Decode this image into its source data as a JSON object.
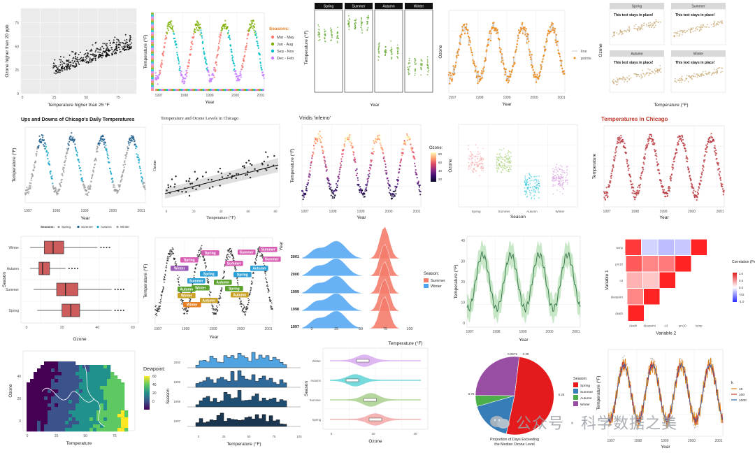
{
  "watermark": {
    "text": "公众号 · 科学数据之美"
  },
  "chart_data": [
    {
      "id": "p1",
      "type": "scatter",
      "xlabel": "Temperature higher than 25 °F",
      "ylabel": "Ozone higher than 20 ppb",
      "xticks": [
        "0",
        "25",
        "50",
        "75"
      ],
      "yticks": [
        "0",
        "25",
        "50",
        "75"
      ],
      "background": "#ebebeb",
      "point_color": "#000000"
    },
    {
      "id": "p2",
      "type": "scatter",
      "xlabel": "Year",
      "ylabel": "Temperature (°F)",
      "xticks": [
        "1997",
        "1998",
        "1999",
        "2000",
        "2001"
      ],
      "legend_title": "Seasons:",
      "legend": [
        "Mar - May",
        "Jun - Aug",
        "Sep - Nov",
        "Dec - Feb"
      ],
      "colors": [
        "#f8766d",
        "#7cae00",
        "#00bfc4",
        "#c77cff"
      ]
    },
    {
      "id": "p3",
      "type": "scatter",
      "xlabel": "Year",
      "ylabel": "Temperature (°F)",
      "facets": [
        "Spring",
        "Summer",
        "Autumn",
        "Winter"
      ],
      "point_color": "#6aaa3a"
    },
    {
      "id": "p4",
      "type": "line",
      "xlabel": "Year",
      "ylabel": "Ozone",
      "xticks": [
        "1997",
        "1998",
        "1999",
        "2000",
        "2001"
      ],
      "legend": [
        "line",
        "points"
      ],
      "color": "#ee8a1a"
    },
    {
      "id": "p5",
      "type": "scatter",
      "xlabel": "Temperature (°F)",
      "ylabel": "Ozone",
      "facets": [
        "Spring",
        "Summer",
        "Autumn",
        "Winter"
      ],
      "annotation": "This text stays in place!",
      "point_color": "#c9ad7a"
    },
    {
      "id": "p6",
      "type": "scatter",
      "title": "Ups and Downs of Chicago's Daily Temperatures",
      "xlabel": "Year",
      "ylabel": "Temperature (°F)",
      "xticks": [
        "1997",
        "1998",
        "1999",
        "2000",
        "2001"
      ],
      "legend_title": "Seasons:",
      "legend": [
        "Spring",
        "Summer",
        "Autumn",
        "Winter"
      ],
      "colors": [
        "#9e9e9e",
        "#1b5c8a",
        "#1fa8c9",
        "#9e9e9e"
      ]
    },
    {
      "id": "p7",
      "type": "scatter",
      "title": "Temperature and Ozone Levels in Chicago",
      "xlabel": "Temperature (°F)",
      "ylabel": "Ozone",
      "xticks": [
        "0",
        "20",
        "40",
        "60",
        "80"
      ]
    },
    {
      "id": "p8",
      "type": "scatter",
      "title": "Viridis 'inferno'",
      "xlabel": "Year",
      "ylabel": "Temperature (°F)",
      "xticks": [
        "1997",
        "1998",
        "1999",
        "2000",
        "2001"
      ],
      "legend_title": "Ozone:",
      "colorbar_ticks": [
        "80",
        "60",
        "40",
        "20"
      ]
    },
    {
      "id": "p9",
      "type": "scatter",
      "xlabel": "Season",
      "ylabel": "Ozone",
      "categories": [
        "Spring",
        "Summer",
        "Autumn",
        "Winter"
      ],
      "colors": [
        "#f4a6a6",
        "#9ccc65",
        "#26c6da",
        "#ce93d8"
      ]
    },
    {
      "id": "p10",
      "type": "scatter",
      "title": "Temperatures in Chicago",
      "xlabel": "Year",
      "ylabel": "Temperature",
      "xticks": [
        "1997",
        "1998",
        "1999",
        "2000",
        "2001"
      ],
      "point_color": "#b5333a"
    },
    {
      "id": "p11",
      "type": "box",
      "xlabel": "Ozone",
      "ylabel": "Season",
      "categories": [
        "Winter",
        "Autumn",
        "Summer",
        "Spring"
      ],
      "xticks": [
        "0",
        "20",
        "40",
        "60"
      ],
      "boxes": [
        {
          "name": "Winter",
          "min": 2,
          "q1": 10,
          "median": 15,
          "q3": 21,
          "max": 40
        },
        {
          "name": "Autumn",
          "min": 2,
          "q1": 7,
          "median": 9,
          "q3": 13,
          "max": 22
        },
        {
          "name": "Summer",
          "min": 4,
          "q1": 17,
          "median": 22,
          "q3": 29,
          "max": 48
        },
        {
          "name": "Spring",
          "min": 6,
          "q1": 20,
          "median": 25,
          "q3": 30,
          "max": 48
        }
      ],
      "fill": "#cd5c5c"
    },
    {
      "id": "p12",
      "type": "scatter",
      "xlabel": "Year",
      "ylabel": "Temperature (°F)",
      "xticks": [
        "1997",
        "1998",
        "1999",
        "2000",
        "2001"
      ],
      "labels": [
        {
          "text": "Spring",
          "color": "#d65db1"
        },
        {
          "text": "Summer",
          "color": "#d65db1"
        },
        {
          "text": "Summer",
          "color": "#d65db1"
        },
        {
          "text": "Summer",
          "color": "#d65db1"
        },
        {
          "text": "Summer",
          "color": "#d65db1"
        },
        {
          "text": "Spring",
          "color": "#d65db1"
        },
        {
          "text": "Winter",
          "color": "#9b59b6"
        },
        {
          "text": "Autumn",
          "color": "#2e9fd6"
        },
        {
          "text": "Spring",
          "color": "#2e9fd6"
        },
        {
          "text": "Spring",
          "color": "#2e9fd6"
        },
        {
          "text": "Summer",
          "color": "#2e9fd6"
        },
        {
          "text": "Autumn",
          "color": "#5aa02c"
        },
        {
          "text": "Spring",
          "color": "#5aa02c"
        },
        {
          "text": "Winter",
          "color": "#5aa02c"
        },
        {
          "text": "Autumn",
          "color": "#5aa02c"
        },
        {
          "text": "Autumn",
          "color": "#c9a227"
        },
        {
          "text": "Winter",
          "color": "#c9a227"
        },
        {
          "text": "Autumn",
          "color": "#c9a227"
        },
        {
          "text": "Winter",
          "color": "#e67e22"
        }
      ]
    },
    {
      "id": "p13",
      "type": "area",
      "xlabel": "Temperature (°F)",
      "ylabel": "Year",
      "yticks": [
        "2001",
        "2000",
        "1999",
        "1998",
        "1997"
      ],
      "xticks": [
        "0",
        "25",
        "50",
        "75",
        "100"
      ],
      "legend_title": "Season:",
      "legend": [
        "Summer",
        "Winter"
      ],
      "colors": [
        "#f47c6b",
        "#4ea3f2"
      ]
    },
    {
      "id": "p14",
      "type": "line",
      "xlabel": "Year",
      "ylabel": "Temperature (°F)",
      "xticks": [
        "1997",
        "1998",
        "1999",
        "2000",
        "2001"
      ],
      "yticks": [
        "40",
        "30",
        "20",
        "10",
        "0"
      ],
      "color": "#3d7a4f"
    },
    {
      "id": "p15",
      "type": "heatmap",
      "xlabel": "Variable 2",
      "ylabel": "Variable 1",
      "xticks": [
        "death",
        "dewpoint",
        "o3",
        "pm10",
        "temp"
      ],
      "yticks": [
        "temp",
        "pm10",
        "o3",
        "dewpoint",
        "death"
      ],
      "legend_title": "Correlation (Pearson)",
      "colorbar_ticks": [
        "1.0",
        "0.5",
        "0.0",
        "-0.5",
        "-1.0"
      ],
      "cells": [
        [
          1,
          null,
          null,
          null,
          null
        ],
        [
          0.55,
          1,
          null,
          null,
          null
        ],
        [
          0.35,
          0.25,
          1,
          null,
          null
        ],
        [
          0.75,
          0.55,
          0.6,
          1,
          null
        ],
        [
          0.9,
          -0.2,
          -0.3,
          -0.25,
          1
        ]
      ]
    },
    {
      "id": "p16",
      "type": "heatmap",
      "xlabel": "Temperature",
      "ylabel": "Ozone",
      "xticks": [
        "0",
        "25",
        "50",
        "75"
      ],
      "yticks": [
        "40",
        "20",
        "0"
      ],
      "legend_title": "Dewpoint:",
      "colorbar_ticks": [
        "60",
        "40",
        "20",
        "0"
      ]
    },
    {
      "id": "p17",
      "type": "bar",
      "xlabel": "Temperature (°F)",
      "ylabel": "Season",
      "yticks": [
        "2000",
        "1999",
        "1998",
        "1997"
      ],
      "xticks": [
        "0",
        "25",
        "50",
        "75",
        "100"
      ],
      "colors": [
        "#4ea3e0",
        "#2f6a9a",
        "#1f4e73",
        "#1a3550"
      ]
    },
    {
      "id": "p18",
      "type": "violin",
      "xlabel": "Ozone",
      "ylabel": "Season",
      "categories": [
        "Winter",
        "Autumn",
        "Summer",
        "Spring"
      ],
      "xticks": [
        "0",
        "20",
        "40"
      ],
      "colors": [
        "#d8a9f0",
        "#5fd3d6",
        "#a8d08d",
        "#f4a6a6"
      ]
    },
    {
      "id": "p19",
      "type": "pie",
      "title": "Proportion of Days Exceeding the Median Ozone Level",
      "legend_title": "Season:",
      "labels": [
        "Spring",
        "Summer",
        "Autumn",
        "Winter"
      ],
      "values": [
        0.75,
        0.25,
        0.0671,
        0.39
      ],
      "slice_labels": [
        "0.75",
        "0.25",
        "0.0671",
        "0.39"
      ],
      "colors": [
        "#e41a1c",
        "#377eb8",
        "#4daf4a",
        "#984ea3"
      ]
    },
    {
      "id": "p20",
      "type": "line",
      "xlabel": "Year",
      "ylabel": "Temperature (°F)",
      "xticks": [
        "1997",
        "1998",
        "1999",
        "2000",
        "2001"
      ],
      "legend_title": "k",
      "legend": [
        "10",
        "100",
        "1000"
      ],
      "colors": [
        "#e08a1e",
        "#cc3b2b",
        "#2b6cb0"
      ]
    }
  ]
}
